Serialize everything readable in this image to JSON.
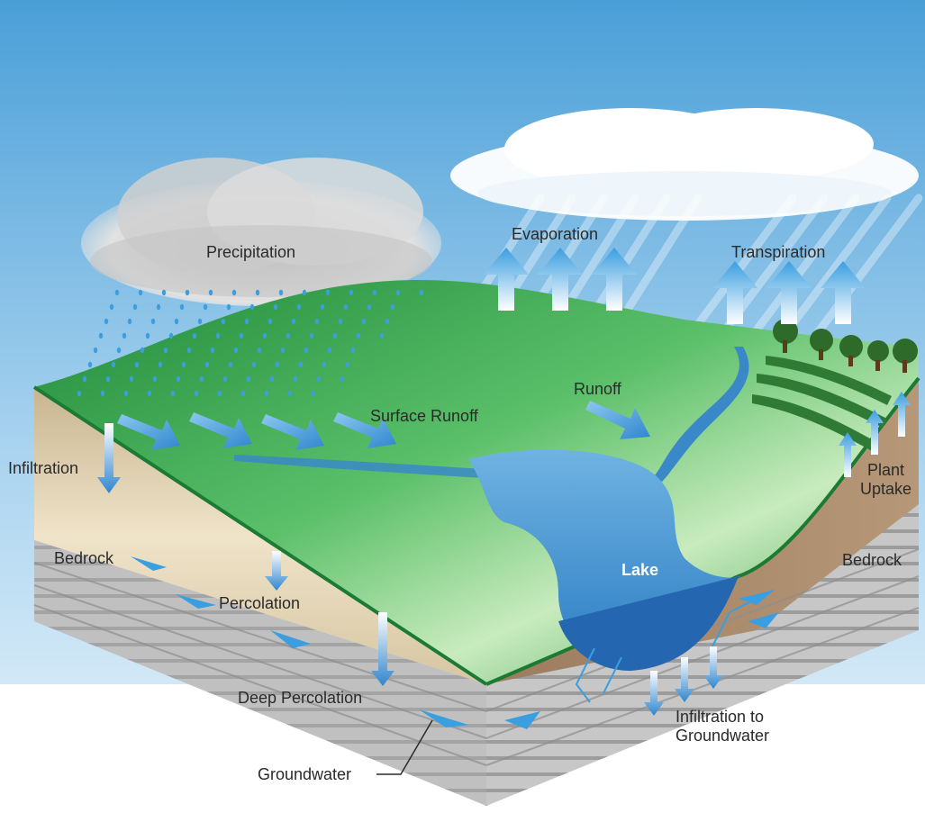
{
  "labels": {
    "precipitation": "Precipitation",
    "evaporation": "Evaporation",
    "transpiration": "Transpiration",
    "runoff": "Runoff",
    "surface_runoff": "Surface Runoff",
    "infiltration": "Infiltration",
    "plant_uptake_line1": "Plant",
    "plant_uptake_line2": "Uptake",
    "bedrock_left": "Bedrock",
    "bedrock_right": "Bedrock",
    "percolation": "Percolation",
    "lake": "Lake",
    "deep_percolation": "Deep Percolation",
    "infiltration_gw_line1": "Infiltration to",
    "infiltration_gw_line2": "Groundwater",
    "groundwater": "Groundwater"
  },
  "colors": {
    "sky_top": "#4a9fd8",
    "sky_bottom": "#e8f4fb",
    "grass_dark": "#1e8a3a",
    "grass_light": "#b9e2a8",
    "water": "#3a88c8",
    "soil": "#d9c7a4",
    "bedrock": "#b8b8b8",
    "arrow": "#3a9ee0",
    "trees": "#2e6b2a"
  }
}
